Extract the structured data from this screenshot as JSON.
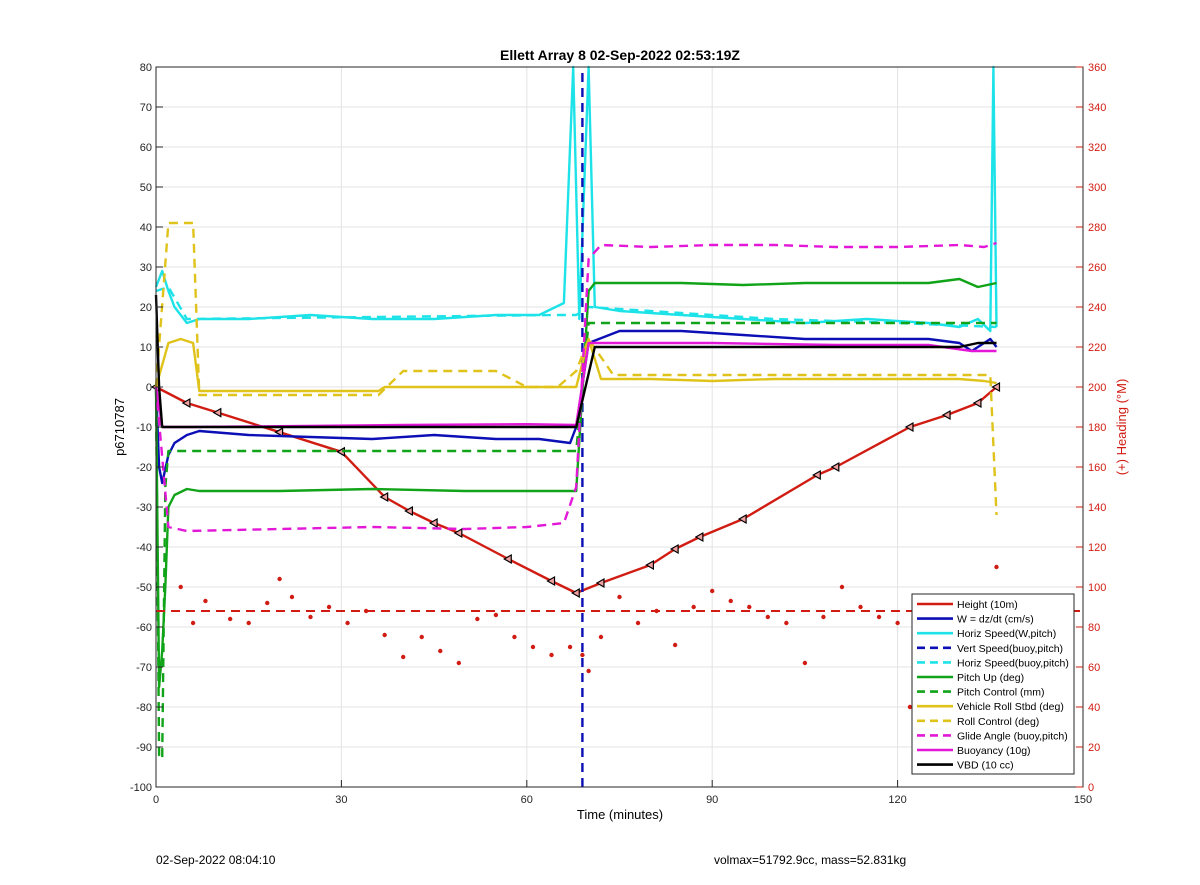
{
  "chart_data": {
    "type": "line",
    "title": "Ellett Array 8 02-Sep-2022 02:53:19Z",
    "xlabel": "Time (minutes)",
    "ylabel": "p6710787",
    "y2label": "(+) Heading (°M)",
    "xlim": [
      0,
      150
    ],
    "ylim": [
      -100,
      80
    ],
    "y2lim": [
      0,
      360
    ],
    "xticks": [
      0,
      30,
      60,
      90,
      120,
      150
    ],
    "yticks": [
      -100,
      -90,
      -80,
      -70,
      -60,
      -50,
      -40,
      -30,
      -20,
      -10,
      0,
      10,
      20,
      30,
      40,
      50,
      60,
      70,
      80
    ],
    "y2ticks": [
      0,
      20,
      40,
      60,
      80,
      100,
      120,
      140,
      160,
      180,
      200,
      220,
      240,
      260,
      280,
      300,
      320,
      340,
      360
    ],
    "grid": true,
    "legend_position": "bottom-right",
    "series": [
      {
        "name": "Height (10m)",
        "color": "#d01c12",
        "style": "solid",
        "marker": "triangle",
        "x": [
          0,
          5,
          10,
          20,
          30,
          37,
          41,
          45,
          49,
          57,
          64,
          68,
          72,
          80,
          84,
          88,
          95,
          107,
          110,
          122,
          128,
          133,
          136
        ],
        "y": [
          0,
          -4,
          -6.4,
          -11.3,
          -16.2,
          -27.5,
          -31,
          -34,
          -36.5,
          -43,
          -48.5,
          -51.5,
          -49,
          -44.5,
          -40.5,
          -37.5,
          -33,
          -22,
          -20,
          -10,
          -7,
          -4,
          0
        ]
      },
      {
        "name": "W = dz/dt (cm/s)",
        "color": "#0b0fb5",
        "style": "solid",
        "x": [
          0,
          0.5,
          1,
          2,
          3,
          5,
          7,
          15,
          25,
          35,
          45,
          55,
          62,
          67,
          68,
          70,
          75,
          85,
          95,
          105,
          115,
          125,
          130,
          132,
          135,
          136
        ],
        "y": [
          0,
          -20,
          -24,
          -17,
          -14,
          -12,
          -11,
          -12,
          -12.5,
          -13,
          -12,
          -13,
          -13,
          -14,
          -10,
          11,
          14,
          14,
          13,
          12,
          12,
          12,
          11,
          9,
          12,
          10
        ]
      },
      {
        "name": "Horiz Speed(W,pitch)",
        "color": "#1de3e8",
        "style": "solid",
        "x": [
          0,
          1,
          2,
          3,
          5,
          7,
          15,
          25,
          35,
          45,
          55,
          62,
          66,
          67.5,
          68.5,
          70,
          71,
          75,
          85,
          95,
          105,
          115,
          125,
          130,
          133,
          135,
          135.5,
          136
        ],
        "y": [
          25,
          29,
          24,
          20,
          16,
          17,
          17,
          18,
          17,
          17,
          18,
          18,
          21,
          80,
          17,
          80,
          20,
          19,
          18,
          17,
          16,
          17,
          16,
          15,
          17,
          14,
          80,
          15
        ]
      },
      {
        "name": "Vert Speed(buoy,pitch)",
        "color": "#0b0fb5",
        "style": "dashed",
        "x": [
          69,
          69,
          69
        ],
        "y": [
          -100,
          0,
          80
        ]
      },
      {
        "name": "Horiz Speed(buoy,pitch)",
        "color": "#1de3e8",
        "style": "dashed",
        "x": [
          0,
          2,
          5,
          65,
          68,
          70,
          80,
          100,
          120,
          136
        ],
        "y": [
          24,
          25,
          17,
          18,
          18,
          20,
          19,
          17,
          16,
          15
        ]
      },
      {
        "name": "Pitch Up (deg)",
        "color": "#11a318",
        "style": "solid",
        "x": [
          0,
          0.5,
          1,
          1.5,
          2,
          3,
          5,
          7,
          20,
          35,
          50,
          65,
          68,
          70,
          71,
          75,
          85,
          95,
          105,
          115,
          125,
          130,
          133,
          136
        ],
        "y": [
          0,
          -75,
          -66,
          -50,
          -30,
          -27,
          -25.5,
          -26,
          -26,
          -25.5,
          -26,
          -26,
          -26,
          24,
          26,
          26,
          26,
          25.5,
          26,
          26,
          26,
          27,
          25,
          26
        ]
      },
      {
        "name": "Pitch Control (mm)",
        "color": "#11a318",
        "style": "dashed",
        "x": [
          0,
          0.5,
          1,
          1.5,
          2,
          68,
          69,
          70,
          136
        ],
        "y": [
          0,
          -92,
          -93,
          -25,
          -16,
          -16,
          0,
          16,
          16
        ]
      },
      {
        "name": "Vehicle Roll Stbd (deg)",
        "color": "#e0c31a",
        "style": "solid",
        "x": [
          0,
          2,
          4,
          6,
          7,
          20,
          36,
          37,
          41,
          45,
          49,
          57,
          64,
          68,
          70,
          72,
          80,
          90,
          100,
          110,
          120,
          130,
          134,
          136
        ],
        "y": [
          0,
          11,
          12,
          11,
          -1,
          -1,
          -1,
          0,
          0,
          0,
          0,
          0,
          0,
          0,
          12,
          2,
          2,
          1.5,
          2,
          2,
          2,
          2,
          1.5,
          1
        ]
      },
      {
        "name": "Roll Control (deg)",
        "color": "#e0c31a",
        "style": "dashed",
        "x": [
          0,
          2,
          4,
          6,
          7,
          36,
          40,
          45,
          50,
          55,
          60,
          65,
          68,
          70,
          74,
          80,
          90,
          100,
          110,
          120,
          130,
          135,
          136
        ],
        "y": [
          0,
          41,
          41,
          41,
          -2,
          -2,
          4,
          4,
          4,
          4,
          0,
          0,
          4,
          12,
          3,
          3,
          3,
          3,
          3,
          3,
          3,
          3,
          -32
        ]
      },
      {
        "name": "Glide Angle (buoy,pitch)",
        "color": "#e317d8",
        "style": "dashed",
        "x": [
          0,
          2,
          5,
          20,
          35,
          50,
          60,
          66,
          68,
          70,
          72,
          80,
          90,
          100,
          110,
          120,
          130,
          134,
          136
        ],
        "y": [
          0,
          -35,
          -36,
          -35.5,
          -35,
          -35.5,
          -35,
          -34,
          -25,
          32,
          35.5,
          35,
          35.5,
          35.5,
          35,
          35,
          35.5,
          35,
          36
        ]
      },
      {
        "name": "Buoyancy (10g)",
        "color": "#e317d8",
        "style": "solid",
        "x": [
          0,
          1,
          5,
          20,
          40,
          60,
          68,
          70,
          90,
          110,
          125,
          132,
          136
        ],
        "y": [
          0,
          -10,
          -10,
          -9.8,
          -9.5,
          -9.3,
          -9.5,
          11,
          11,
          10.5,
          10.5,
          9,
          9
        ]
      },
      {
        "name": "VBD (10 cc)",
        "color": "#000000",
        "style": "solid",
        "x": [
          0,
          0.5,
          1,
          5,
          40,
          68,
          71,
          90,
          120,
          130,
          133,
          136
        ],
        "y": [
          23,
          0,
          -10,
          -10,
          -10,
          -10,
          10,
          10,
          10,
          10,
          11,
          11
        ]
      }
    ],
    "heading": {
      "name": "Heading",
      "axis": "right",
      "color": "#d01c12",
      "target": 88,
      "x": [
        4,
        6,
        8,
        12,
        15,
        18,
        20,
        22,
        25,
        28,
        31,
        34,
        37,
        40,
        43,
        46,
        49,
        52,
        55,
        58,
        61,
        64,
        67,
        69,
        70,
        72,
        75,
        78,
        81,
        84,
        87,
        90,
        93,
        96,
        99,
        102,
        105,
        108,
        111,
        114,
        117,
        120,
        122,
        124,
        126,
        128,
        130,
        132,
        134,
        136
      ],
      "y": [
        100,
        82,
        93,
        84,
        82,
        92,
        104,
        95,
        85,
        90,
        82,
        88,
        76,
        65,
        75,
        68,
        62,
        84,
        86,
        75,
        70,
        66,
        70,
        66,
        58,
        75,
        95,
        82,
        88,
        71,
        90,
        98,
        93,
        90,
        85,
        82,
        62,
        85,
        100,
        90,
        85,
        82,
        40,
        65,
        72,
        62,
        70,
        58,
        80,
        110
      ]
    }
  },
  "footer": {
    "timestamp": "02-Sep-2022 08:04:10",
    "summary": "volmax=51792.9cc, mass=52.831kg"
  }
}
